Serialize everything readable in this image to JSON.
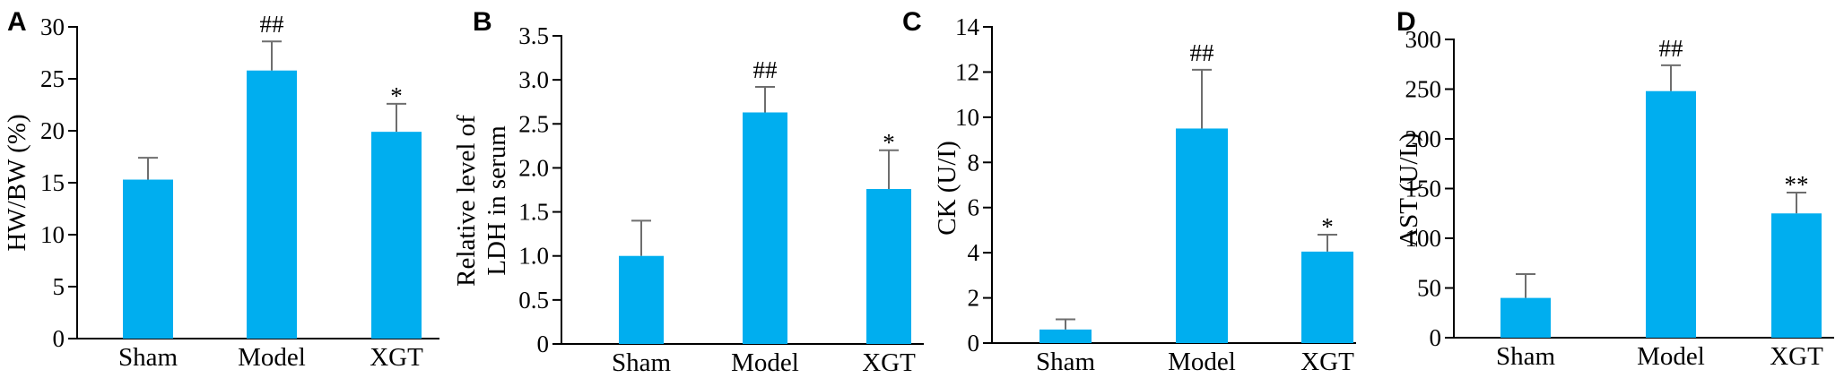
{
  "chart_data": [
    {
      "panel": "A",
      "type": "bar",
      "categories": [
        "Sham",
        "Model",
        "XGT"
      ],
      "values": [
        15.3,
        25.8,
        19.9
      ],
      "errors": [
        2.1,
        2.8,
        2.7
      ],
      "significance": [
        "",
        "##",
        "*"
      ],
      "ylabel": "HW/BW (%)",
      "ylim": [
        0,
        30
      ],
      "yticks": [
        0,
        5,
        10,
        15,
        20,
        25,
        30
      ],
      "bar_color": "#00aeef"
    },
    {
      "panel": "B",
      "type": "bar",
      "categories": [
        "Sham",
        "Model",
        "XGT"
      ],
      "values": [
        1.0,
        2.63,
        1.76
      ],
      "errors": [
        0.4,
        0.29,
        0.44
      ],
      "significance": [
        "",
        "##",
        "*"
      ],
      "ylabel": [
        "Relative level of",
        "LDH in serum"
      ],
      "ylim": [
        0,
        3.5
      ],
      "yticks": [
        "0",
        "0.5",
        "1.0",
        "1.5",
        "2.0",
        "2.5",
        "3.0",
        "3.5"
      ],
      "bar_color": "#00aeef"
    },
    {
      "panel": "C",
      "type": "bar",
      "categories": [
        "Sham",
        "Model",
        "XGT"
      ],
      "values": [
        0.6,
        9.5,
        4.05
      ],
      "errors": [
        0.45,
        2.6,
        0.75
      ],
      "significance": [
        "",
        "##",
        "*"
      ],
      "ylabel": "CK (U/I)",
      "ylim": [
        0,
        14
      ],
      "yticks": [
        0,
        2,
        4,
        6,
        8,
        10,
        12,
        14
      ],
      "bar_color": "#00aeef"
    },
    {
      "panel": "D",
      "type": "bar",
      "categories": [
        "Sham",
        "Model",
        "XGT"
      ],
      "values": [
        40,
        248,
        125
      ],
      "errors": [
        24,
        26,
        21
      ],
      "significance": [
        "",
        "##",
        "**"
      ],
      "ylabel": "AST (U/L)",
      "ylim": [
        0,
        300
      ],
      "yticks": [
        0,
        50,
        100,
        150,
        200,
        250,
        300
      ],
      "bar_color": "#00aeef"
    }
  ]
}
